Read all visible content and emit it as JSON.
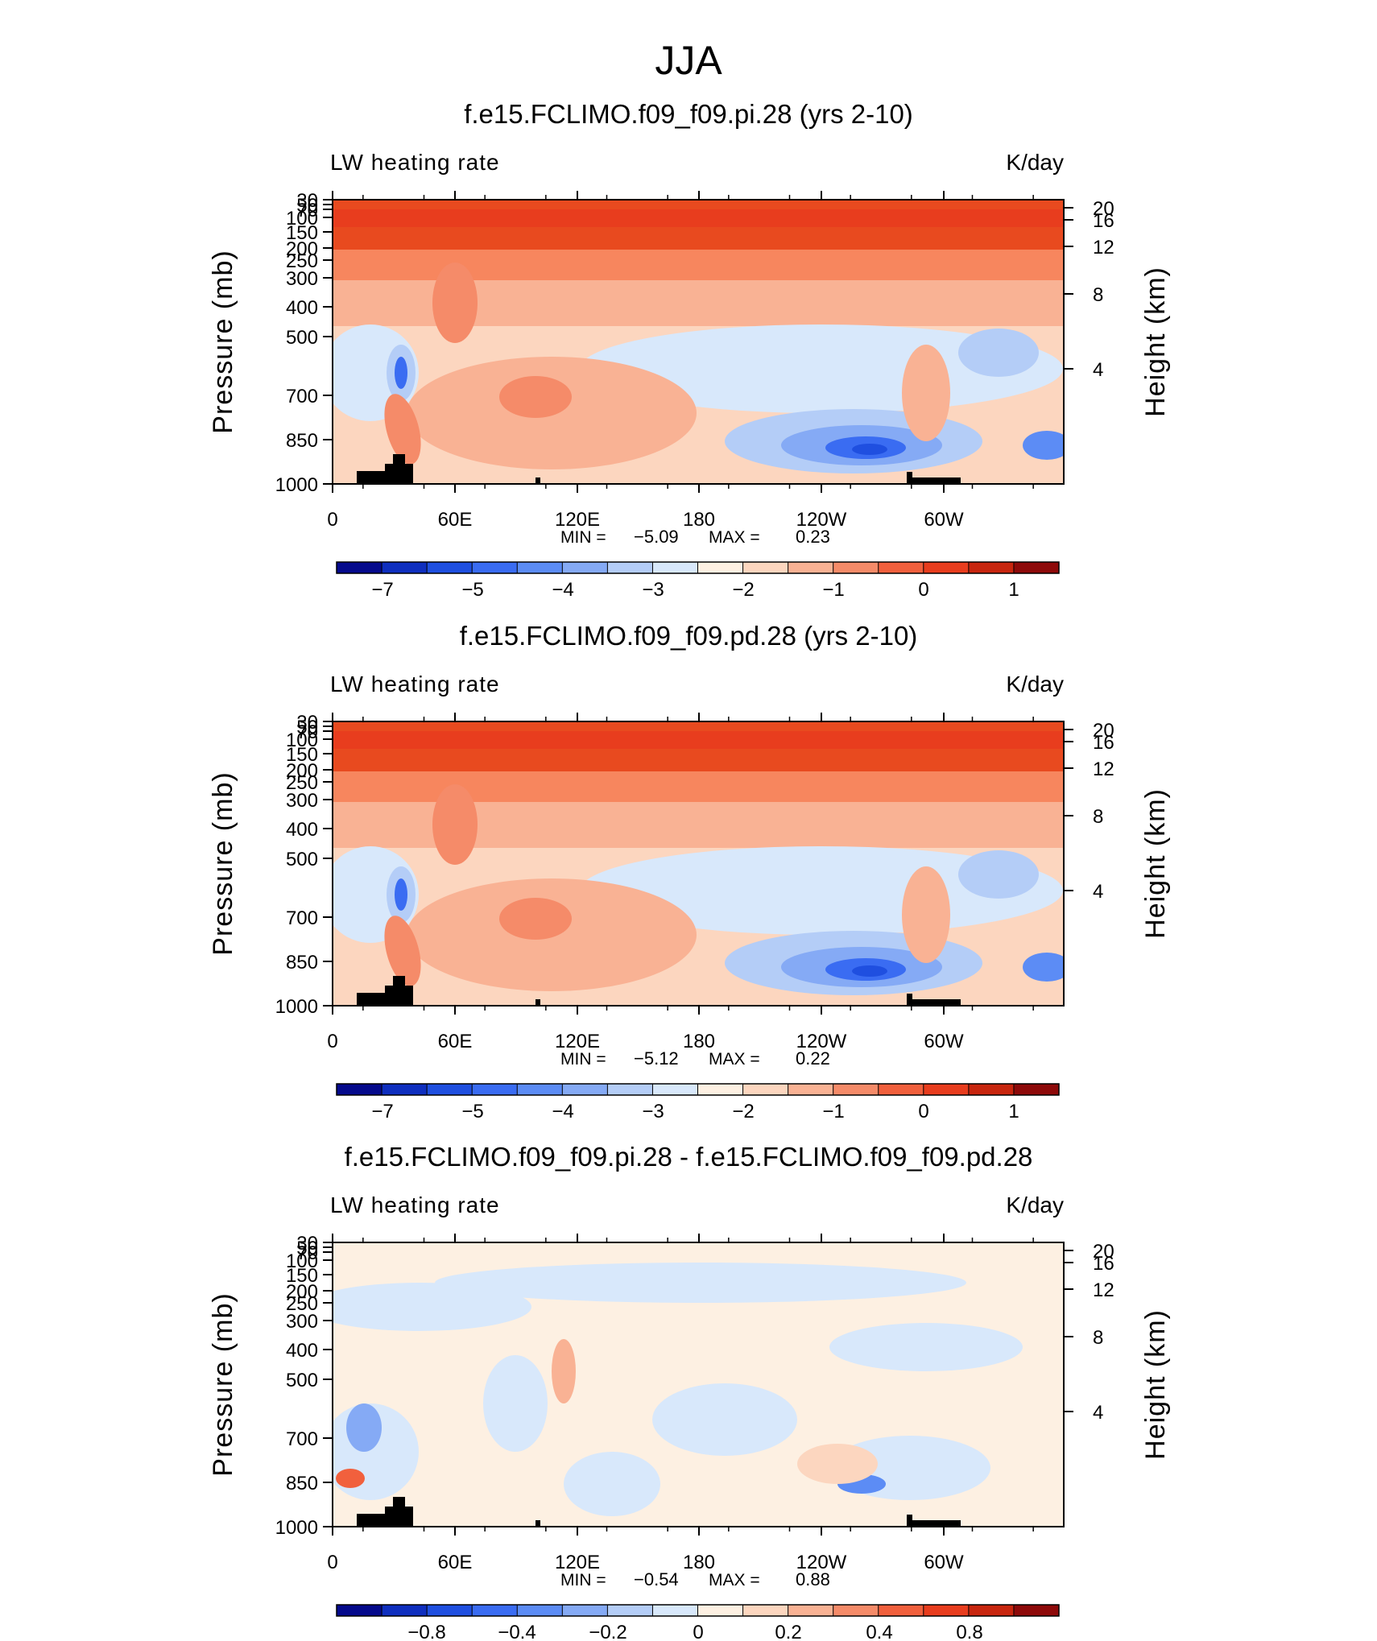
{
  "figure_title": "JJA",
  "chart_data": [
    {
      "type": "heatmap",
      "title": "f.e15.FCLIMO.f09_f09.pi.28 (yrs 2-10)",
      "left_label": "LW heating rate",
      "right_label": "K/day",
      "ylabel": "Pressure (mb)",
      "y2label": "Height (km)",
      "x_ticks": [
        "0",
        "60E",
        "120E",
        "180",
        "120W",
        "60W"
      ],
      "y_ticks": [
        "30",
        "50",
        "70",
        "100",
        "150",
        "200",
        "250",
        "300",
        "400",
        "500",
        "700",
        "850",
        "1000"
      ],
      "y2_ticks": [
        "20",
        "16",
        "12",
        "8",
        "4"
      ],
      "min_label": "MIN =",
      "min_value": "−5.09",
      "max_label": "MAX =",
      "max_value": "0.23",
      "colorbar_labels": [
        "−7",
        "−5",
        "−4",
        "−3",
        "−2",
        "−1",
        "0",
        "1"
      ],
      "colorbar_colors": [
        "#050a8c",
        "#0f2fbf",
        "#1f4fe0",
        "#3a6cf2",
        "#5c8cf5",
        "#85aaf5",
        "#b4cdf7",
        "#d8e8fb",
        "#fdf0e2",
        "#fcd6bf",
        "#f9b294",
        "#f58b69",
        "#f1603d",
        "#e83d1e",
        "#c8260f",
        "#8e0a0a"
      ],
      "fields": {
        "high_band": "#e84a1f",
        "upper_band": "#f7865e",
        "mid_band": "#f9b294",
        "low_base": "#fcd6bf"
      }
    },
    {
      "type": "heatmap",
      "title": "f.e15.FCLIMO.f09_f09.pd.28 (yrs 2-10)",
      "left_label": "LW heating rate",
      "right_label": "K/day",
      "ylabel": "Pressure (mb)",
      "y2label": "Height (km)",
      "x_ticks": [
        "0",
        "60E",
        "120E",
        "180",
        "120W",
        "60W"
      ],
      "y_ticks": [
        "30",
        "50",
        "70",
        "100",
        "150",
        "200",
        "250",
        "300",
        "400",
        "500",
        "700",
        "850",
        "1000"
      ],
      "y2_ticks": [
        "20",
        "16",
        "12",
        "8",
        "4"
      ],
      "min_label": "MIN =",
      "min_value": "−5.12",
      "max_label": "MAX =",
      "max_value": "0.22",
      "colorbar_labels": [
        "−7",
        "−5",
        "−4",
        "−3",
        "−2",
        "−1",
        "0",
        "1"
      ],
      "colorbar_colors": [
        "#050a8c",
        "#0f2fbf",
        "#1f4fe0",
        "#3a6cf2",
        "#5c8cf5",
        "#85aaf5",
        "#b4cdf7",
        "#d8e8fb",
        "#fdf0e2",
        "#fcd6bf",
        "#f9b294",
        "#f58b69",
        "#f1603d",
        "#e83d1e",
        "#c8260f",
        "#8e0a0a"
      ],
      "fields": {
        "high_band": "#e84a1f",
        "upper_band": "#f7865e",
        "mid_band": "#f9b294",
        "low_base": "#fcd6bf"
      }
    },
    {
      "type": "heatmap",
      "title": "f.e15.FCLIMO.f09_f09.pi.28 - f.e15.FCLIMO.f09_f09.pd.28",
      "left_label": "LW heating rate",
      "right_label": "K/day",
      "ylabel": "Pressure (mb)",
      "y2label": "Height (km)",
      "x_ticks": [
        "0",
        "60E",
        "120E",
        "180",
        "120W",
        "60W"
      ],
      "y_ticks": [
        "30",
        "50",
        "70",
        "100",
        "150",
        "200",
        "250",
        "300",
        "400",
        "500",
        "700",
        "850",
        "1000"
      ],
      "y2_ticks": [
        "20",
        "16",
        "12",
        "8",
        "4"
      ],
      "min_label": "MIN =",
      "min_value": "−0.54",
      "max_label": "MAX =",
      "max_value": "0.88",
      "colorbar_labels": [
        "−0.8",
        "−0.4",
        "−0.2",
        "0",
        "0.2",
        "0.4",
        "0.8"
      ],
      "colorbar_colors": [
        "#050a8c",
        "#0f2fbf",
        "#1f4fe0",
        "#3a6cf2",
        "#5c8cf5",
        "#85aaf5",
        "#b4cdf7",
        "#d8e8fb",
        "#fdf0e2",
        "#fcd6bf",
        "#f9b294",
        "#f58b69",
        "#f1603d",
        "#e83d1e",
        "#c8260f",
        "#8e0a0a"
      ],
      "fields": {
        "high_band": "#fdf0e2",
        "upper_band": "#fdf0e2",
        "mid_band": "#fdf0e2",
        "low_base": "#fdf0e2"
      }
    }
  ]
}
